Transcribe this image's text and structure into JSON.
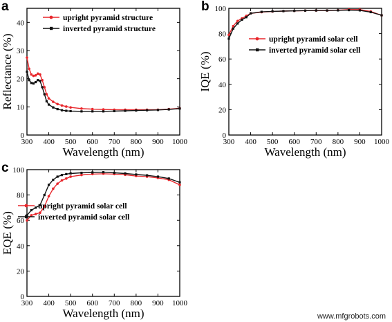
{
  "colors": {
    "upright": "#e8262b",
    "inverted": "#111111",
    "axis": "#000000"
  },
  "watermark": "www.mfgrobots.com",
  "chart_data": [
    {
      "id": "a",
      "panel_label": "a",
      "type": "line",
      "xlabel": "Wavelength (nm)",
      "ylabel": "Reflectance (%)",
      "xlim": [
        300,
        1000
      ],
      "ylim": [
        0,
        45
      ],
      "xticks": [
        300,
        400,
        500,
        600,
        700,
        800,
        900,
        1000
      ],
      "yticks": [
        0,
        10,
        20,
        30,
        40
      ],
      "legend_position": "top-left",
      "x": [
        300,
        310,
        320,
        330,
        340,
        350,
        360,
        370,
        380,
        390,
        400,
        420,
        440,
        460,
        480,
        500,
        550,
        600,
        650,
        700,
        750,
        800,
        850,
        900,
        950,
        1000
      ],
      "series": [
        {
          "name": "upright pyramid structure",
          "color_key": "upright",
          "values": [
            27.5,
            23.5,
            21.5,
            21.0,
            21.2,
            21.8,
            21.5,
            19.5,
            17.0,
            14.5,
            13.0,
            11.8,
            11.0,
            10.5,
            10.1,
            9.8,
            9.4,
            9.2,
            9.1,
            9.0,
            9.0,
            9.0,
            9.0,
            9.0,
            9.2,
            9.5
          ]
        },
        {
          "name": "inverted pyramid structure",
          "color_key": "inverted",
          "values": [
            22.5,
            19.5,
            18.5,
            18.3,
            18.8,
            19.5,
            19.2,
            17.0,
            14.5,
            12.0,
            10.8,
            9.8,
            9.2,
            8.8,
            8.6,
            8.5,
            8.4,
            8.4,
            8.4,
            8.5,
            8.6,
            8.7,
            8.8,
            8.9,
            9.1,
            9.4
          ]
        }
      ]
    },
    {
      "id": "b",
      "panel_label": "b",
      "type": "line",
      "xlabel": "Wavelength (nm)",
      "ylabel": "IQE (%)",
      "xlim": [
        300,
        1000
      ],
      "ylim": [
        0,
        100
      ],
      "xticks": [
        300,
        400,
        500,
        600,
        700,
        800,
        900,
        1000
      ],
      "yticks": [
        0,
        20,
        40,
        60,
        80,
        100
      ],
      "legend_position": "center",
      "x": [
        300,
        320,
        340,
        360,
        380,
        400,
        450,
        500,
        550,
        600,
        650,
        700,
        750,
        800,
        850,
        900,
        950,
        1000
      ],
      "series": [
        {
          "name": "upright pyramid solar cell",
          "color_key": "upright",
          "values": [
            79,
            86,
            90,
            92,
            94,
            96,
            97,
            97.5,
            97.8,
            98,
            98.2,
            98.3,
            98.3,
            98.5,
            99,
            99,
            97.5,
            94.5
          ]
        },
        {
          "name": "inverted pyramid solar cell",
          "color_key": "inverted",
          "values": [
            76,
            84,
            88,
            91,
            93,
            96,
            97.2,
            97.6,
            97.8,
            98,
            98.2,
            98.3,
            98.3,
            98.4,
            98.6,
            98.4,
            97,
            94.5
          ]
        }
      ]
    },
    {
      "id": "c",
      "panel_label": "c",
      "type": "line",
      "xlabel": "Wavelength (nm)",
      "ylabel": "EQE (%)",
      "xlim": [
        300,
        1000
      ],
      "ylim": [
        0,
        100
      ],
      "xticks": [
        300,
        400,
        500,
        600,
        700,
        800,
        900,
        1000
      ],
      "yticks": [
        0,
        20,
        40,
        60,
        80,
        100
      ],
      "legend_position": "center",
      "x": [
        300,
        320,
        340,
        360,
        380,
        400,
        420,
        440,
        460,
        480,
        500,
        550,
        600,
        650,
        700,
        750,
        800,
        850,
        900,
        950,
        1000
      ],
      "series": [
        {
          "name": "upright pyramid solar cell",
          "color_key": "upright",
          "values": [
            60,
            64,
            65,
            66,
            71,
            79,
            85,
            89,
            91.5,
            93,
            94.5,
            95.8,
            96.5,
            96.8,
            96.5,
            96,
            95,
            94.5,
            93.5,
            92,
            88
          ]
        },
        {
          "name": "inverted pyramid solar cell",
          "color_key": "inverted",
          "values": [
            64,
            68,
            70,
            72,
            80,
            88,
            92,
            94.5,
            95.8,
            96.5,
            97,
            97.5,
            97.8,
            98,
            97.5,
            97,
            96.2,
            95.5,
            94.5,
            93,
            90
          ]
        }
      ]
    }
  ]
}
